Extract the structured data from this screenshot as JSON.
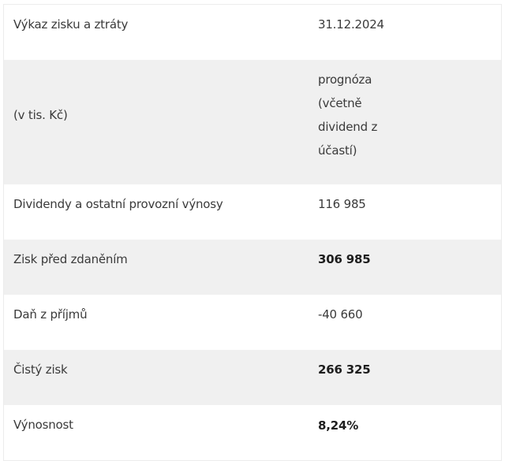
{
  "table": {
    "rows": [
      {
        "label": "Výkaz zisku a ztráty",
        "value": "31.12.2024",
        "bold": false
      },
      {
        "label": "(v tis. Kč)",
        "value": "prognóza (včetně dividend z účastí)",
        "bold": false
      },
      {
        "label": "Dividendy a ostatní provozní výnosy",
        "value": "116 985",
        "bold": false
      },
      {
        "label": "Zisk před zdaněním",
        "value": "306 985",
        "bold": true
      },
      {
        "label": "Daň z příjmů",
        "value": "-40 660",
        "bold": false
      },
      {
        "label": "Čistý zisk",
        "value": "266 325",
        "bold": true
      },
      {
        "label": "Výnosnost",
        "value": "8,24%",
        "bold": true
      }
    ]
  }
}
